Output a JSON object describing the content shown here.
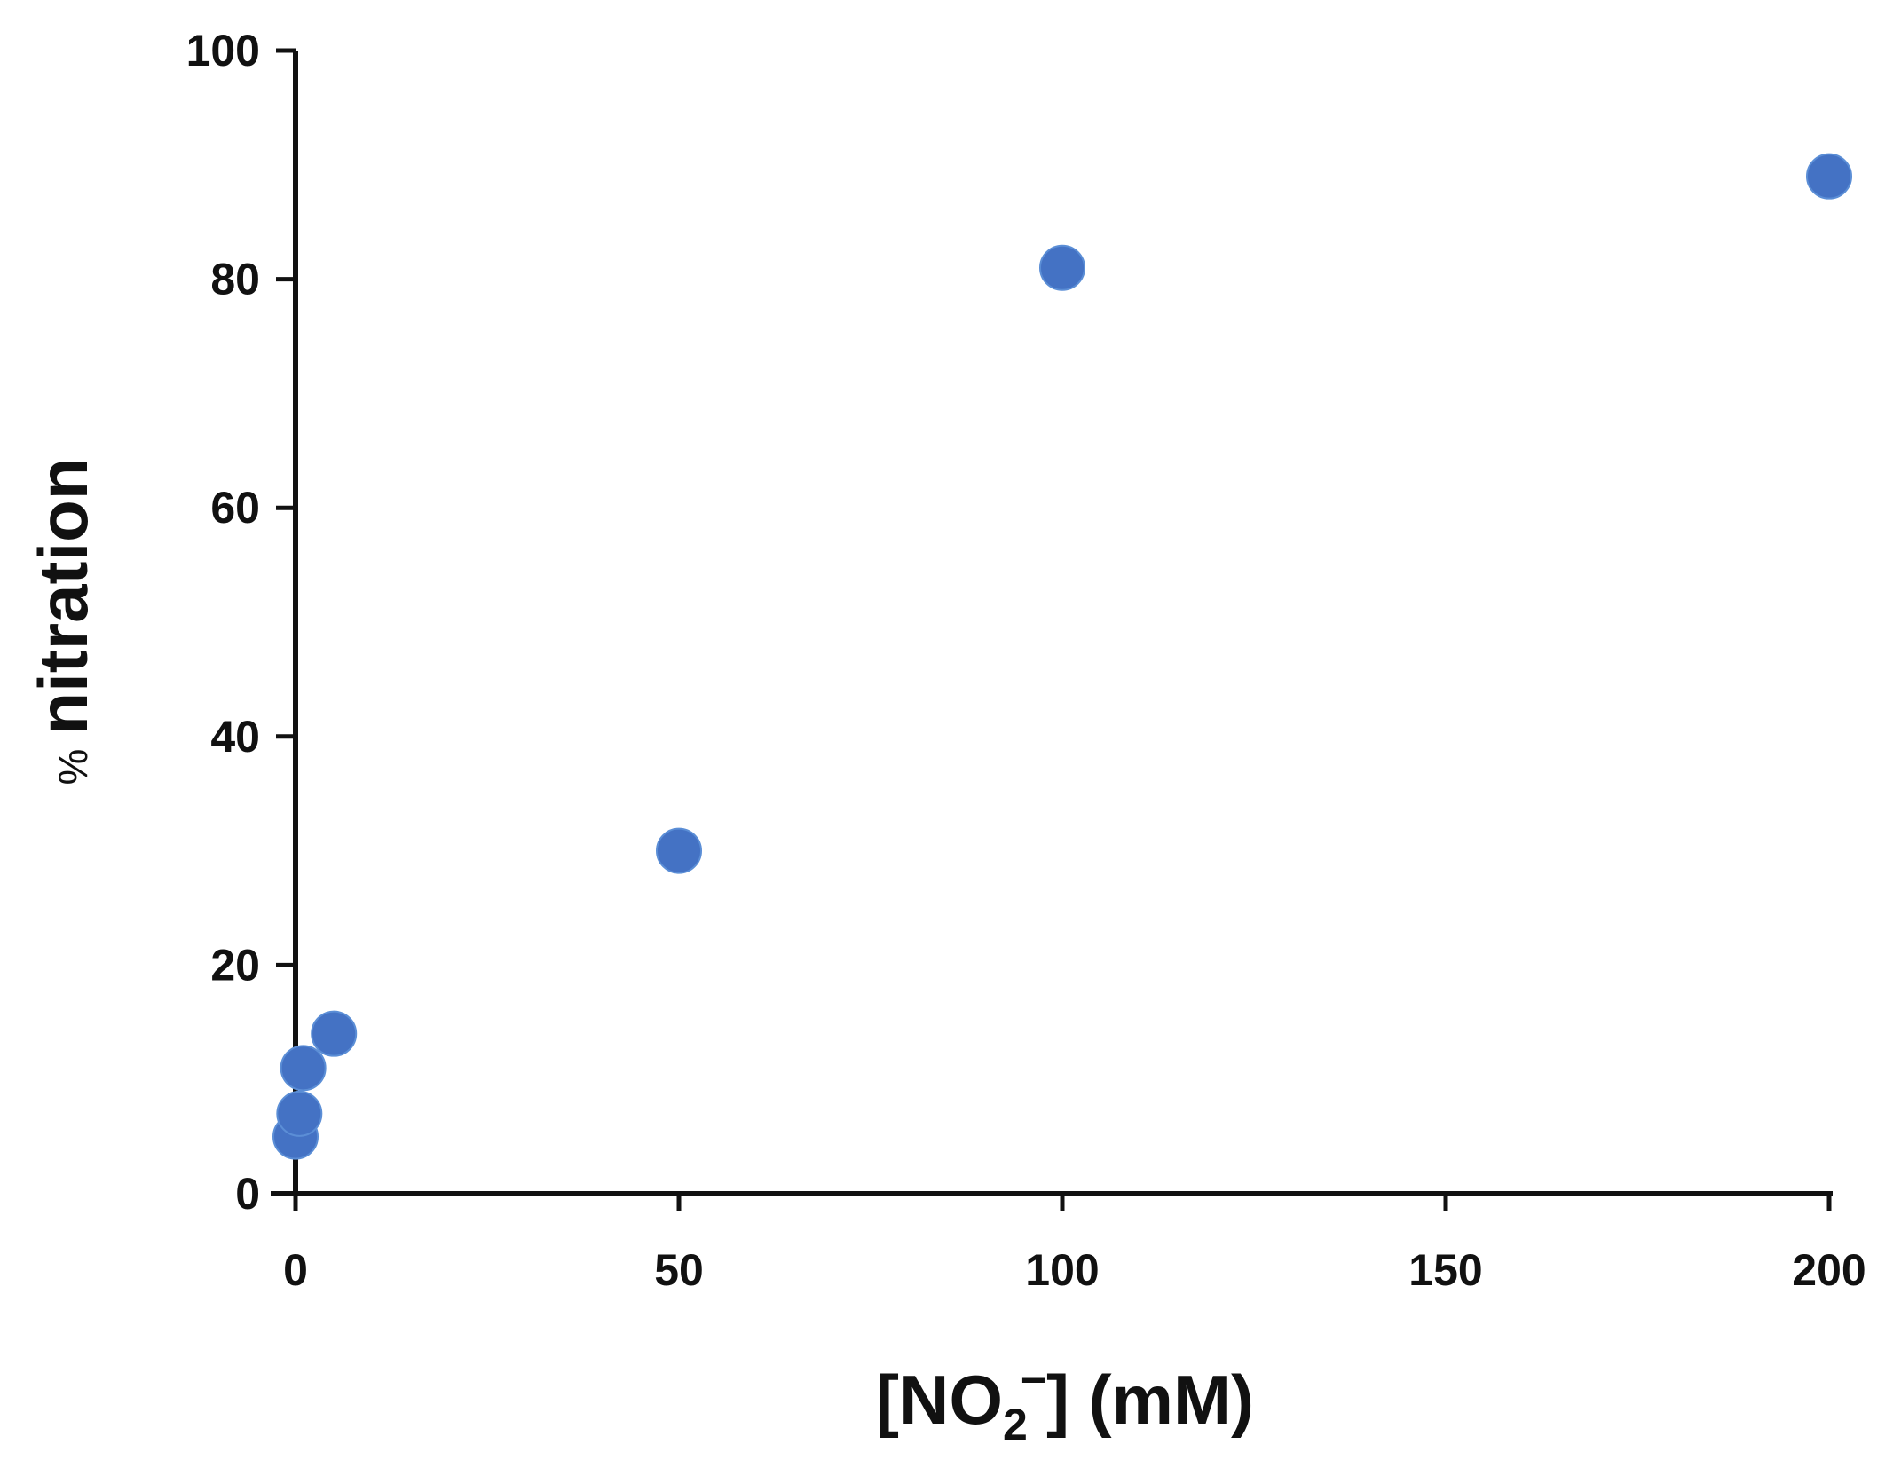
{
  "chart_data": {
    "type": "scatter",
    "xlabel": {
      "open": "[NO",
      "sub": "2",
      "sup": "−",
      "close": "] (mM)"
    },
    "ylabel": {
      "prefix": "%",
      "main": "nitration"
    },
    "xlim": [
      0,
      200
    ],
    "ylim": [
      0,
      100
    ],
    "x_ticks": [
      0,
      50,
      100,
      150,
      200
    ],
    "y_ticks": [
      0,
      20,
      40,
      60,
      80,
      100
    ],
    "grid": false,
    "series": [
      {
        "marker_color": "#4472C4",
        "points": [
          {
            "x": 0,
            "y": 5
          },
          {
            "x": 0.5,
            "y": 7
          },
          {
            "x": 1,
            "y": 11
          },
          {
            "x": 5,
            "y": 14
          },
          {
            "x": 50,
            "y": 30
          },
          {
            "x": 100,
            "y": 81
          },
          {
            "x": 200,
            "y": 89
          }
        ]
      }
    ]
  }
}
